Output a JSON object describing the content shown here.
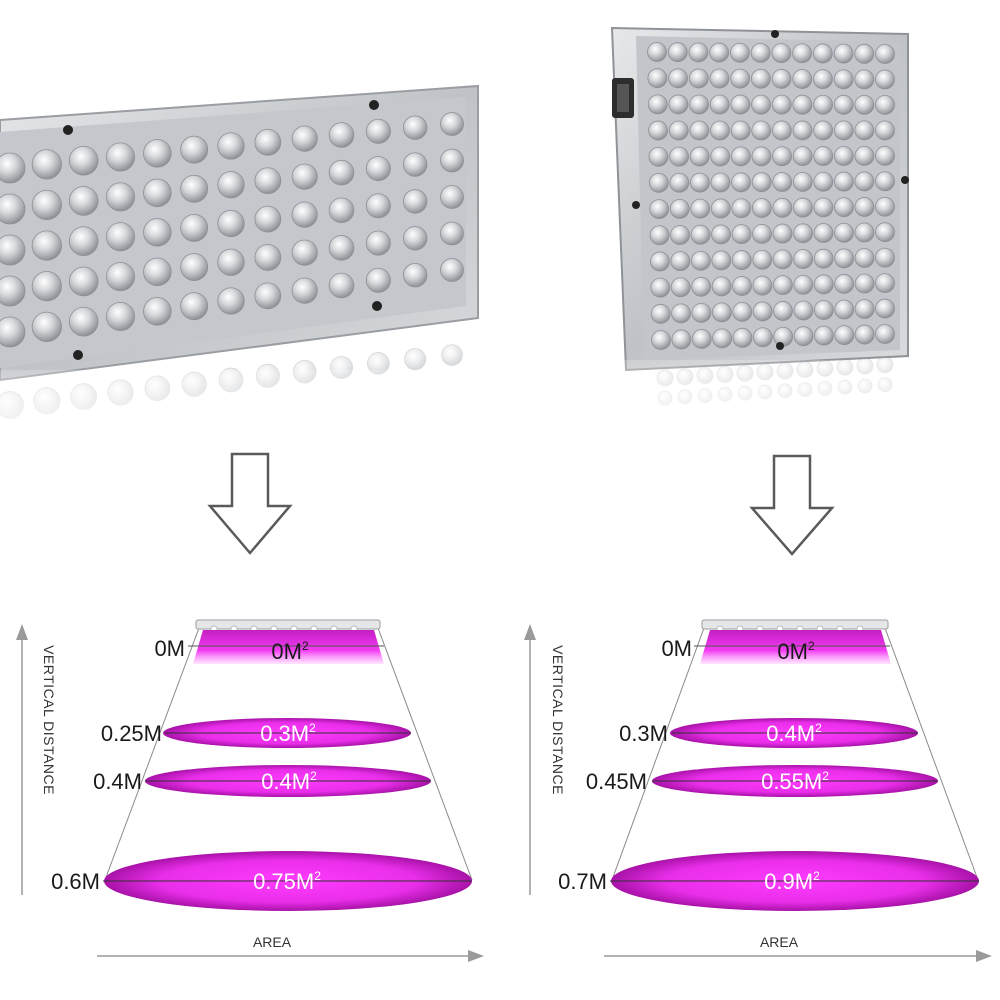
{
  "colors": {
    "magenta_center": "#ff33ff",
    "magenta_edge": "#b616b6",
    "panel_frame": "#c9cbcf",
    "panel_back": "#a9acb1",
    "led": "#d7d9dc",
    "arrow_stroke": "#5a5a5a",
    "text": "#1a1a1a"
  },
  "icons": [
    "down-arrow-icon",
    "up-axis-arrow-icon",
    "right-axis-arrow-icon"
  ],
  "left_diagram": {
    "axis_y_label": "VERTICAL DISTANCE",
    "axis_x_label": "AREA",
    "levels": [
      {
        "distance": "0M",
        "area": "0M",
        "sup": "2"
      },
      {
        "distance": "0.25M",
        "area": "0.3M",
        "sup": "2"
      },
      {
        "distance": "0.4M",
        "area": "0.4M",
        "sup": "2"
      },
      {
        "distance": "0.6M",
        "area": "0.75M",
        "sup": "2"
      }
    ]
  },
  "right_diagram": {
    "axis_y_label": "VERTICAL DISTANCE",
    "axis_x_label": "AREA",
    "levels": [
      {
        "distance": "0M",
        "area": "0M",
        "sup": "2"
      },
      {
        "distance": "0.3M",
        "area": "0.4M",
        "sup": "2"
      },
      {
        "distance": "0.45M",
        "area": "0.55M",
        "sup": "2"
      },
      {
        "distance": "0.7M",
        "area": "0.9M",
        "sup": "2"
      }
    ]
  }
}
